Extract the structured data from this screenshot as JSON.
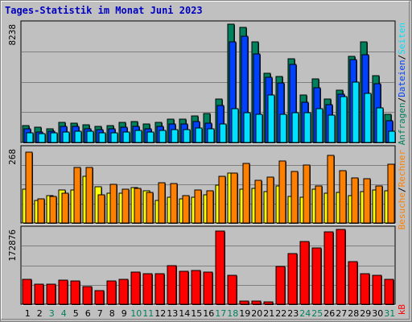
{
  "title": "Tages-Statistik im Monat Juni 2023",
  "colors": {
    "background": "#c0c0c0",
    "title": "#0000c0",
    "hits": "#00805c",
    "files": "#0040ff",
    "pages": "#00e0ff",
    "visits": "#ff8000",
    "sites": "#ffff00",
    "kbytes": "#ff0000",
    "weekday_label": "#000000",
    "weekend_label": "#00805c"
  },
  "chart_data": [
    {
      "type": "bar",
      "panel": "hits-files-pages",
      "ytick": "8238",
      "ylim": [
        0,
        8238
      ],
      "legend_label_parts": [
        "Anfragen",
        "/",
        "Dateien",
        "/",
        "Seiten"
      ],
      "categories": [
        "1",
        "2",
        "3",
        "4",
        "5",
        "6",
        "7",
        "8",
        "9",
        "10",
        "11",
        "12",
        "13",
        "14",
        "15",
        "16",
        "17",
        "18",
        "19",
        "20",
        "21",
        "22",
        "23",
        "24",
        "25",
        "26",
        "27",
        "28",
        "29",
        "30",
        "31"
      ],
      "weekend_days": [
        3,
        4,
        10,
        11,
        17,
        18,
        24,
        25,
        31
      ],
      "series": [
        {
          "name": "Anfragen",
          "key": "hits",
          "values": [
            1200,
            1050,
            950,
            1400,
            1350,
            1250,
            1100,
            1200,
            1400,
            1450,
            1300,
            1400,
            1650,
            1600,
            1850,
            2000,
            3000,
            8238,
            8000,
            7000,
            4800,
            4600,
            5850,
            3300,
            4400,
            3050,
            3650,
            6000,
            7000,
            4650,
            1950
          ]
        },
        {
          "name": "Dateien",
          "key": "files",
          "values": [
            950,
            750,
            800,
            1100,
            1100,
            950,
            900,
            950,
            1050,
            1100,
            950,
            1100,
            1300,
            1300,
            1450,
            1350,
            2600,
            7000,
            7400,
            6150,
            4550,
            4150,
            5450,
            2800,
            3800,
            2650,
            3350,
            5750,
            6100,
            4100,
            1500
          ]
        },
        {
          "name": "Seiten",
          "key": "pages",
          "values": [
            700,
            600,
            650,
            750,
            800,
            800,
            650,
            700,
            750,
            850,
            750,
            850,
            900,
            900,
            1000,
            950,
            1300,
            2350,
            2050,
            1950,
            3300,
            1950,
            2100,
            2050,
            2350,
            1900,
            3200,
            4200,
            3400,
            2400,
            800
          ]
        }
      ]
    },
    {
      "type": "bar",
      "panel": "visits-sites",
      "ytick": "268",
      "ylim": [
        0,
        268
      ],
      "legend_label_parts": [
        "Besuche",
        "/",
        "Rechner"
      ],
      "categories": [
        "1",
        "2",
        "3",
        "4",
        "5",
        "6",
        "7",
        "8",
        "9",
        "10",
        "11",
        "12",
        "13",
        "14",
        "15",
        "16",
        "17",
        "18",
        "19",
        "20",
        "21",
        "22",
        "23",
        "24",
        "25",
        "26",
        "27",
        "28",
        "29",
        "30",
        "31"
      ],
      "series": [
        {
          "name": "Rechner",
          "key": "sites",
          "values": [
            121,
            83,
            99,
            118,
            120,
            170,
            132,
            109,
            108,
            127,
            116,
            82,
            92,
            87,
            92,
            103,
            136,
            182,
            123,
            124,
            114,
            134,
            97,
            92,
            121,
            108,
            111,
            100,
            113,
            120,
            117
          ]
        },
        {
          "name": "Besuche",
          "key": "visits",
          "values": [
            255,
            88,
            95,
            108,
            200,
            200,
            103,
            141,
            123,
            126,
            112,
            145,
            144,
            98,
            119,
            116,
            170,
            180,
            215,
            153,
            167,
            224,
            185,
            211,
            134,
            245,
            188,
            163,
            161,
            134,
            213
          ]
        }
      ]
    },
    {
      "type": "bar",
      "panel": "kbytes",
      "ytick": "172876",
      "ylim": [
        0,
        172876
      ],
      "legend_label": "kB",
      "categories": [
        "1",
        "2",
        "3",
        "4",
        "5",
        "6",
        "7",
        "8",
        "9",
        "10",
        "11",
        "12",
        "13",
        "14",
        "15",
        "16",
        "17",
        "18",
        "19",
        "20",
        "21",
        "22",
        "23",
        "24",
        "25",
        "26",
        "27",
        "28",
        "29",
        "30",
        "31"
      ],
      "series": [
        {
          "name": "kB",
          "key": "kbytes",
          "values": [
            58000,
            47000,
            46000,
            55000,
            54000,
            41000,
            32000,
            53000,
            58000,
            74000,
            71000,
            71000,
            90000,
            76000,
            78000,
            74000,
            170000,
            66000,
            7000,
            8000,
            5000,
            88000,
            118000,
            145000,
            130000,
            168000,
            172876,
            99000,
            70000,
            66000,
            58000
          ]
        }
      ]
    }
  ]
}
